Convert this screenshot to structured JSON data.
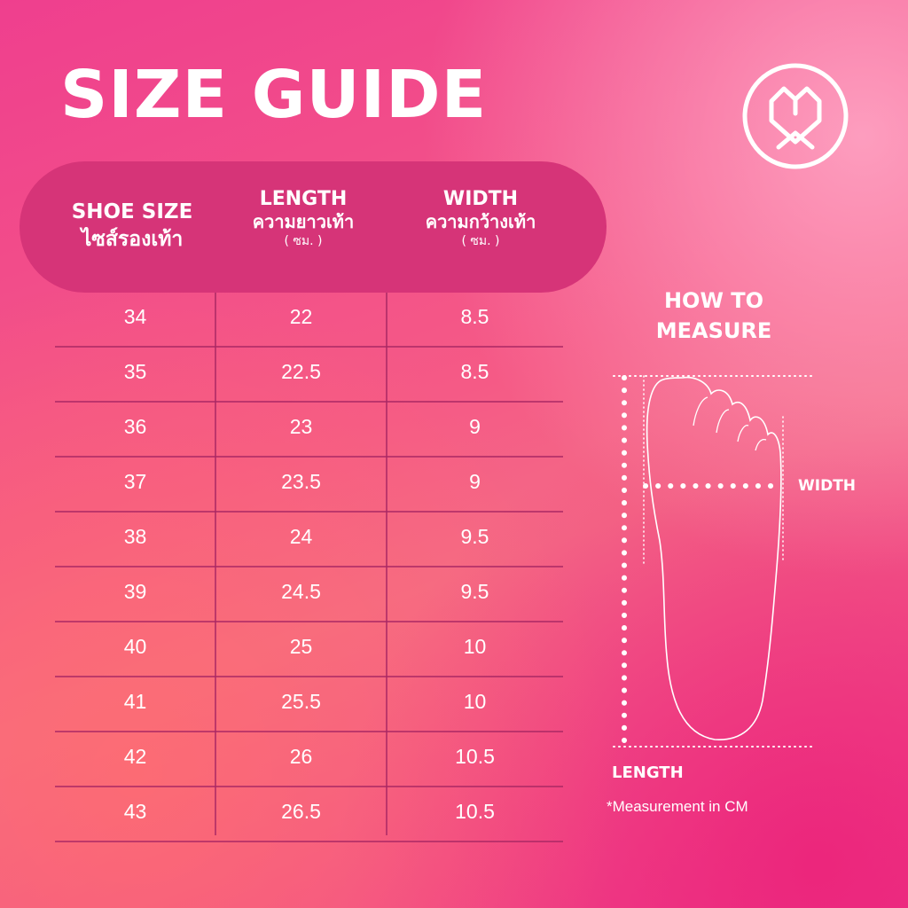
{
  "title": "SIZE GUIDE",
  "logo_icon": "heart-shield-logo-icon",
  "colors": {
    "header_bg": "#d63478",
    "background": "#f0508a",
    "text": "#ffffff"
  },
  "table": {
    "headers": {
      "size_en": "SHOE SIZE",
      "size_th": "ไซส์รองเท้า",
      "length_en": "LENGTH",
      "length_th": "ความยาวเท้า",
      "length_unit": "( ซม. )",
      "width_en": "WIDTH",
      "width_th": "ความกว้างเท้า",
      "width_unit": "( ซม. )"
    },
    "rows": [
      {
        "size": "34",
        "length": "22",
        "width": "8.5"
      },
      {
        "size": "35",
        "length": "22.5",
        "width": "8.5"
      },
      {
        "size": "36",
        "length": "23",
        "width": "9"
      },
      {
        "size": "37",
        "length": "23.5",
        "width": "9"
      },
      {
        "size": "38",
        "length": "24",
        "width": "9.5"
      },
      {
        "size": "39",
        "length": "24.5",
        "width": "9.5"
      },
      {
        "size": "40",
        "length": "25",
        "width": "10"
      },
      {
        "size": "41",
        "length": "25.5",
        "width": "10"
      },
      {
        "size": "42",
        "length": "26",
        "width": "10.5"
      },
      {
        "size": "43",
        "length": "26.5",
        "width": "10.5"
      }
    ]
  },
  "measure": {
    "heading": "HOW TO MEASURE",
    "width_label": "WIDTH",
    "length_label": "LENGTH",
    "note": "*Measurement in CM",
    "diagram_icon": "foot-outline-icon"
  }
}
